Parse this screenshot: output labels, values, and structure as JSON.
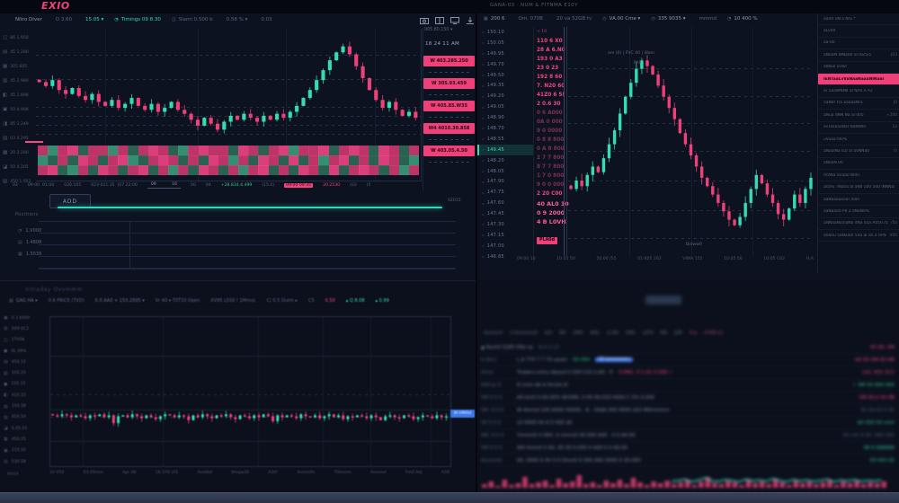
{
  "app": {
    "logo": "EXIO",
    "header": "GANA-03 · NUM & FITNMA E10Y"
  },
  "colors": {
    "pink": "#ef4179",
    "teal": "#34dcb4",
    "green": "#35c98e",
    "blue": "#3f79e8",
    "heat_p": "#cf3a70",
    "heat_P": "#f04585",
    "heat_g": "#2e6b57",
    "heat_G": "#3a9c7b"
  },
  "left": {
    "toolbar": [
      {
        "g": "",
        "t": "Nitro Diver",
        "cls": ""
      },
      {
        "g": "",
        "t": "O 3.60",
        "cls": "dim"
      },
      {
        "g": "",
        "t": "15.05 ▾",
        "cls": "teal"
      },
      {
        "g": "◔",
        "t": "Timings 09 8.30",
        "cls": "teal"
      },
      {
        "g": "◫",
        "t": "Slami 0.500 b",
        "cls": "dim"
      },
      {
        "g": "",
        "t": "0.58 % ▾",
        "cls": "dim"
      },
      {
        "g": "",
        "t": "0.03",
        "cls": "dim"
      }
    ],
    "rail": [
      {
        "g": "◫",
        "v": "86 1.950"
      },
      {
        "g": "▤",
        "v": "45 1.280"
      },
      {
        "g": "▦",
        "v": "305 805"
      },
      {
        "g": "▥",
        "v": "45 2.980"
      },
      {
        "g": "◧",
        "v": "45 1.898"
      },
      {
        "g": "▣",
        "v": "50 4.908"
      },
      {
        "g": "◨",
        "v": "85 3.249"
      },
      {
        "g": "▨",
        "v": "03 4.295"
      },
      {
        "g": "▩",
        "v": "20 3.280"
      },
      {
        "g": "◪",
        "v": "50 4.205"
      },
      {
        "g": "▧",
        "v": "450 1.952"
      }
    ],
    "scale_top": "005.80.150 ▾",
    "time_badge": "18 24 11 AM",
    "badges": [
      "W  403.285.250",
      "W  305.93.459",
      "W  405.85.W35",
      "W4  4010.30.858",
      "W  403.05.4.50"
    ],
    "axis": [
      {
        "t": "03",
        "cls": ""
      },
      {
        "t": "09:00  01:00",
        "cls": ""
      },
      {
        "t": "026.105",
        "cls": ""
      },
      {
        "t": "023 021.35  (07 22:00",
        "cls": ""
      },
      {
        "t": "09            16",
        "cls": "range"
      },
      {
        "t": "00",
        "cls": ""
      },
      {
        "t": "04",
        "cls": ""
      },
      {
        "t": "+28.834.4.499",
        "cls": "green"
      },
      {
        "t": "(15.0)",
        "cls": ""
      },
      {
        "t": "09:00 09:35",
        "cls": "pinkbox"
      },
      {
        "t": "20.2530",
        "cls": "pink"
      },
      {
        "t": "(03",
        "cls": ""
      },
      {
        "t": "(5",
        "cls": ""
      }
    ],
    "add_button": "ADD",
    "progress_note": "02015",
    "positions": {
      "label": "Positions",
      "rows": [
        {
          "g": "◔",
          "v": "1.V000"
        },
        {
          "g": "▤",
          "v": "1.4808"
        },
        {
          "g": "▦",
          "v": "1.5039"
        }
      ]
    }
  },
  "bottom_left": {
    "title": "Intraday Ovvmmm",
    "toolbar": [
      {
        "g": "▤",
        "t": "GAG HA ▾",
        "cls": ""
      },
      {
        "g": "",
        "t": "0.6 PRICE (TVD)",
        "cls": "dim"
      },
      {
        "g": "",
        "t": "0.0 AA0 + 150.2005 ▾",
        "cls": ""
      },
      {
        "g": "",
        "t": "Vr 40 ▾ T0T10 Open",
        "cls": "dim"
      },
      {
        "g": "",
        "t": "0V95 L550 ! 1MmvL",
        "cls": "dim"
      },
      {
        "g": "",
        "t": "C/ 0.5 Outm ▸",
        "cls": "dim"
      },
      {
        "g": "",
        "t": "C5",
        "cls": "dim"
      },
      {
        "g": "",
        "t": "0.50",
        "cls": "pink"
      },
      {
        "g": "",
        "t": "▴ Q 8.08",
        "cls": "teal"
      },
      {
        "g": "",
        "t": "▴ 0.99",
        "cls": "teal"
      }
    ],
    "rail": [
      {
        "g": "▣",
        "v": "0.3 b000"
      },
      {
        "g": "▥",
        "v": "509 0C2"
      },
      {
        "g": "◫",
        "v": "1TV0b"
      },
      {
        "g": "●",
        "v": "0L 00%"
      },
      {
        "g": "▤",
        "v": "450.15"
      },
      {
        "g": "▧",
        "v": "150.20"
      },
      {
        "g": "●",
        "v": "150.15"
      },
      {
        "g": "◧",
        "v": "410.15"
      },
      {
        "g": "▨",
        "v": "150.5B"
      },
      {
        "g": "▥",
        "v": "450.54"
      },
      {
        "g": "◪",
        "v": "0.05.05"
      },
      {
        "g": "▦",
        "v": "450.55"
      },
      {
        "g": "▣",
        "v": "210.50"
      },
      {
        "g": "▤",
        "v": "530.5B"
      }
    ],
    "x_labels": [
      {
        "t": "10:V50"
      },
      {
        "t": "03:05mm"
      },
      {
        "t": "Apr 08"
      },
      {
        "t": "16:376 (A5"
      },
      {
        "t": "Am0bd"
      },
      {
        "t": "0mqw30"
      },
      {
        "t": "A30!"
      },
      {
        "t": "0vmm0s"
      },
      {
        "t": "T0mmm"
      },
      {
        "t": "Avmmd"
      },
      {
        "t": "Fm0 Adj"
      },
      {
        "t": "A50"
      }
    ],
    "chip": "W·HMAd",
    "corner": "M004"
  },
  "right": {
    "toolbar": [
      {
        "g": "▦",
        "t": "200 6",
        "cls": ""
      },
      {
        "g": "",
        "t": "Om. 070B",
        "cls": "dim"
      },
      {
        "g": "",
        "t": "20 va 52GB tv",
        "cls": "dim"
      },
      {
        "g": "◴",
        "t": "VA.00 Cme ▾",
        "cls": ""
      },
      {
        "g": "◷",
        "t": "335 9035 ▾",
        "cls": ""
      },
      {
        "g": "",
        "t": "mmmd",
        "cls": "dim"
      },
      {
        "g": "◔",
        "t": "10 400 %",
        "cls": ""
      }
    ],
    "watchlist": [
      {
        "g": "▫",
        "t": "150.10",
        "cls": ""
      },
      {
        "g": "▫",
        "t": "150.05",
        "cls": ""
      },
      {
        "g": "▫",
        "t": "149.95",
        "cls": ""
      },
      {
        "g": "▫",
        "t": "149.70",
        "cls": ""
      },
      {
        "g": "▫",
        "t": "149.50",
        "cls": ""
      },
      {
        "g": "▫",
        "t": "149.35",
        "cls": ""
      },
      {
        "g": "▫",
        "t": "149.20",
        "cls": ""
      },
      {
        "g": "▫",
        "t": "149.05",
        "cls": ""
      },
      {
        "g": "▫",
        "t": "148.90",
        "cls": ""
      },
      {
        "g": "▫",
        "t": "148.70",
        "cls": ""
      },
      {
        "g": "▫",
        "t": "148.55",
        "cls": ""
      },
      {
        "g": "▫",
        "t": "149.45",
        "cls": "hl"
      },
      {
        "g": "▫",
        "t": "148.20",
        "cls": ""
      },
      {
        "g": "▫",
        "t": "148.05",
        "cls": ""
      },
      {
        "g": "▫",
        "t": "147.90",
        "cls": ""
      },
      {
        "g": "▫",
        "t": "147.75",
        "cls": ""
      },
      {
        "g": "▫",
        "t": "147.60",
        "cls": ""
      },
      {
        "g": "▫",
        "t": "147.45",
        "cls": ""
      },
      {
        "g": "▫",
        "t": "147.30",
        "cls": ""
      },
      {
        "g": "▫",
        "t": "147.15",
        "cls": ""
      },
      {
        "g": "▫",
        "t": "147.00",
        "cls": ""
      },
      {
        "g": "▫",
        "t": "146.85",
        "cls": ""
      }
    ],
    "ladder": [
      {
        "t": "< 10",
        "cls": "lt"
      },
      {
        "t": "110 6 X0",
        "cls": ""
      },
      {
        "t": "28 A 6.N0",
        "cls": ""
      },
      {
        "t": "193 0 A3",
        "cls": ""
      },
      {
        "t": "23 0 23",
        "cls": ""
      },
      {
        "t": "192 8 60",
        "cls": ""
      },
      {
        "t": "7. N20 60",
        "cls": ""
      },
      {
        "t": "41Z0 6 5!",
        "cls": ""
      },
      {
        "t": "2 0.6 30",
        "cls": ""
      },
      {
        "t": "0 6 A000",
        "cls": "d"
      },
      {
        "t": "0A 0 000",
        "cls": "d"
      },
      {
        "t": "9 0 0000",
        "cls": "d"
      },
      {
        "t": "0 8 8 800",
        "cls": "d"
      },
      {
        "t": "0 A 8 800",
        "cls": "d"
      },
      {
        "t": "2 7 7 800",
        "cls": "d"
      },
      {
        "t": "8 7 7 800",
        "cls": "d"
      },
      {
        "t": "1 7 0 800",
        "cls": "d"
      },
      {
        "t": "9 0 0 000",
        "cls": "d"
      },
      {
        "t": "2 20 C00",
        "cls": ""
      },
      {
        "t": "40 AL0 10",
        "cls": "bb"
      },
      {
        "t": "0 9 2000",
        "cls": "bb"
      },
      {
        "t": "4 B L0VH",
        "cls": "bb"
      },
      {
        "t": "PLA0d",
        "cls": "badge"
      }
    ],
    "legend1": "am (0) | FVC 40 | Wam",
    "legend2": "PAP",
    "legend3": "Bidww0",
    "x_labels": [
      {
        "t": "09:00 10"
      },
      {
        "t": "10:05 50"
      },
      {
        "t": "50:00 /55"
      },
      {
        "t": "01:K05 202"
      },
      {
        "t": "VIWA 155"
      },
      {
        "t": "10:05 00"
      },
      {
        "t": "10:05 C02"
      },
      {
        "t": "H:A"
      }
    ]
  },
  "sidebar": [
    {
      "t": "aaVR dN a N/S *",
      "v": ""
    },
    {
      "t": "aLv00",
      "v": ""
    },
    {
      "t": "aa-00",
      "v": ""
    },
    {
      "t": "aNaaM WNa00 aI 0S/5/1",
      "v": "J03"
    },
    {
      "t": "aWaal aOwl",
      "v": ""
    },
    {
      "t": "IENTaaLvVaNaaNaaaNINaaI",
      "v": "",
      "cls": "hl"
    },
    {
      "t": "ar aaaWNNII aI NA0 n A2",
      "v": ""
    },
    {
      "t": "5aN0r tra aaaaaNra",
      "v": "J0"
    },
    {
      "t": "aNua dNN Na aI 005",
      "v": "+200"
    },
    {
      "t": "avTaaaaaNaI NaNWIII",
      "v": "1a"
    },
    {
      "t": "uVuaa I00%",
      "v": ""
    },
    {
      "t": "aNaaINa IL0 aI aVNNa0",
      "v": "r0"
    },
    {
      "t": "aNaaN 00",
      "v": ""
    },
    {
      "t": "mVNa Iaraa0 W00",
      "v": ""
    },
    {
      "t": "a0a% TNa0a aI aN0 u00 500 INNNara",
      "v": ""
    },
    {
      "t": "aaNaaaaaaal )0a0",
      "v": ""
    },
    {
      "t": "aaNaa00 P0 a 0NaN0%",
      "v": ""
    },
    {
      "t": "aNNaaNaI5aNa dNa a5a A050 /55a",
      "v": "/5a"
    },
    {
      "t": "a0a0u 5aNaa0I 50a aI d5 a 0FN d0u",
      "v": "d00"
    }
  ],
  "orders": {
    "header": [
      {
        "t": "Ammm0",
        "cls": ""
      },
      {
        "t": "0 0mmmm0",
        "cls": ""
      },
      {
        "t": "A/0",
        "cls": ""
      },
      {
        "t": "M0",
        "cls": ""
      },
      {
        "t": "0M0",
        "cls": ""
      },
      {
        "t": "W0L",
        "cls": ""
      },
      {
        "t": "A 0M",
        "cls": ""
      },
      {
        "t": "0M0",
        "cls": ""
      },
      {
        "t": "L0T0",
        "cls": ""
      },
      {
        "t": "M0",
        "cls": ""
      },
      {
        "t": "J0M",
        "cls": ""
      },
      {
        "t": "0 a",
        "cls": "c-pink"
      },
      {
        "t": "dT0M d1",
        "cls": "c-dimpink"
      }
    ],
    "rows": [
      {
        "tm": "",
        "tx": "▲ Num0 5280 00b ua",
        "txc": "",
        "mid": "N.A 0.10",
        "midc": "c-dim",
        "chip": "",
        "rt": "00 0A, 0M",
        "rtc": "c-pink"
      },
      {
        "tm": "0 0m1",
        "tx": "L.A 770 7 7 70 aaam",
        "txc": "",
        "mid": "00 000",
        "midc": "c-green",
        "chip": "00 ammmmm",
        "rt": "A0 00 0M 00 0M",
        "rtc": "c-pink"
      },
      {
        "tm": "0mm",
        "tx": "Traders entry bbund 0 500 C/G U.A0 . H",
        "txc": "",
        "mid": "0.0M1, 0 1:A1 0.500 ✓",
        "midc": "c-pink",
        "chip": "",
        "rt": "L02, K01 5C2",
        "rtc": "c-red"
      },
      {
        "tm": "000 Ju 0",
        "tx": "D mml  dA A 0m1A /0",
        "txc": "c-teal",
        "mid": "",
        "midc": "",
        "chip": "",
        "rt": "✓ 0M  00 000 000",
        "rtc": "c-green"
      },
      {
        "tm": "0M 0 0 0",
        "tx": "A0 bm0 0.00.00% W/1M0, 0  00 00.010  0000 C 5% 0.000",
        "txc": "",
        "mid": "",
        "midc": "",
        "chip": "",
        "rt": "0M  00,0 00 0B",
        "rtc": "c-pink"
      },
      {
        "tm": "0M, 0 0 0",
        "tx": "W Ammd 100 A000 5000S . N , 00dA 000  0000 d20 M0mmmm",
        "txc": "",
        "mid": "",
        "midc": "",
        "chip": "",
        "rt": "00  d0.00 0 05",
        "rtc": "c-dim"
      },
      {
        "tm": "00 0 0 0",
        "tx": "L0 0000 00 A 0 000 d0",
        "txc": "c-teal",
        "mid": "",
        "midc": "",
        "chip": "",
        "rt": "A0 000 00 mml",
        "rtc": "c-green"
      },
      {
        "tm": "0M, 0 0 0",
        "tx": "Ymmm0 0 00V, 0 mmm0  00.000 A00 . 0 0  A0.00",
        "txc": "",
        "mid": "",
        "midc": "",
        "chip": "",
        "rt": "A0 m0 A 00, 000 000",
        "rtc": "c-dim"
      },
      {
        "tm": "0M 0 0 0",
        "tx": "W0 0mm0 0 A0, 00 00  0.000 0 A00 0 0 A0.00",
        "txc": "",
        "mid": "",
        "midc": "",
        "chip": "",
        "rt": "00  0 000000",
        "rtc": "c-teal"
      },
      {
        "tm": "Ammmd",
        "tx": "00, 0000 0 0V 0 0 0mm0 0 000 000 0000 0  00.000",
        "txc": "",
        "mid": "",
        "midc": "",
        "chip": "",
        "rt": "00 000 00",
        "rtc": "c-green"
      }
    ]
  },
  "chart_data": [
    {
      "type": "candlestick",
      "title": "main left chart",
      "ylim": [
        30,
        88
      ],
      "closes": [
        62,
        60,
        63,
        58,
        56,
        59,
        55,
        53,
        56,
        52,
        50,
        53,
        49,
        51,
        54,
        50,
        48,
        51,
        47,
        49,
        52,
        48,
        46,
        43,
        40,
        44,
        41,
        38,
        42,
        45,
        43,
        46,
        44,
        42,
        45,
        43,
        46,
        44,
        47,
        50,
        54,
        58,
        63,
        68,
        73,
        77,
        80,
        76,
        70,
        64,
        58,
        53,
        49,
        52,
        48,
        45,
        47,
        44
      ],
      "heatmap": [
        "pGpPgppGpgpPpgGpPppgPpgpPGppPgpPpgPpgp",
        "GgpgPpgpPGgpPpgpgPpGpgPpgPgpGpPgpgPpgG",
        "pPgGpgPpgpPgpGpgPpgpGpPgpgPpgPgpPpgpGp"
      ]
    },
    {
      "type": "candlestick",
      "title": "secondary right chart",
      "ylim": [
        14,
        96
      ],
      "closes": [
        38,
        41,
        39,
        43,
        46,
        44,
        49,
        54,
        59,
        65,
        71,
        76,
        81,
        84,
        82,
        79,
        75,
        71,
        67,
        63,
        58,
        54,
        50,
        46,
        42,
        39,
        36,
        33,
        30,
        27,
        25,
        28,
        33,
        38,
        43,
        40,
        36,
        33,
        29,
        27,
        31,
        36,
        33,
        38,
        42
      ]
    },
    {
      "type": "candlestick",
      "title": "micro bottom chart",
      "ylim": [
        0,
        150
      ],
      "closes": [
        50,
        49,
        51,
        50,
        48,
        50,
        49,
        47,
        50,
        49,
        51,
        48,
        50,
        42,
        49,
        50,
        48,
        51,
        49,
        47,
        50,
        48,
        46,
        49,
        51,
        50,
        48,
        50,
        49,
        45,
        50,
        48,
        51,
        49,
        47,
        50,
        49,
        51,
        48,
        46,
        50,
        49,
        47,
        50,
        48,
        51,
        49,
        44,
        50,
        48,
        50,
        49,
        47,
        51,
        49,
        48,
        50,
        47,
        49,
        51,
        48,
        50,
        46,
        49,
        48,
        50,
        49,
        47,
        50,
        48,
        45,
        49,
        50,
        48,
        47,
        50,
        49,
        46,
        48,
        50,
        49,
        47,
        50,
        48,
        49
      ]
    },
    {
      "type": "bar",
      "title": "activity sparkline",
      "values": [
        4,
        7,
        2,
        9,
        3,
        5,
        12,
        4,
        6,
        8,
        3,
        10,
        5,
        7,
        14,
        4,
        6,
        3,
        8,
        5,
        9,
        4,
        11,
        6,
        3,
        7,
        5,
        8,
        4,
        6,
        9,
        3,
        7,
        12,
        5,
        4,
        8,
        6,
        3,
        9,
        5,
        7,
        4,
        10,
        6,
        3,
        8,
        5,
        7,
        4,
        6,
        9,
        3,
        7,
        5,
        8,
        4,
        6,
        5,
        7
      ]
    }
  ]
}
